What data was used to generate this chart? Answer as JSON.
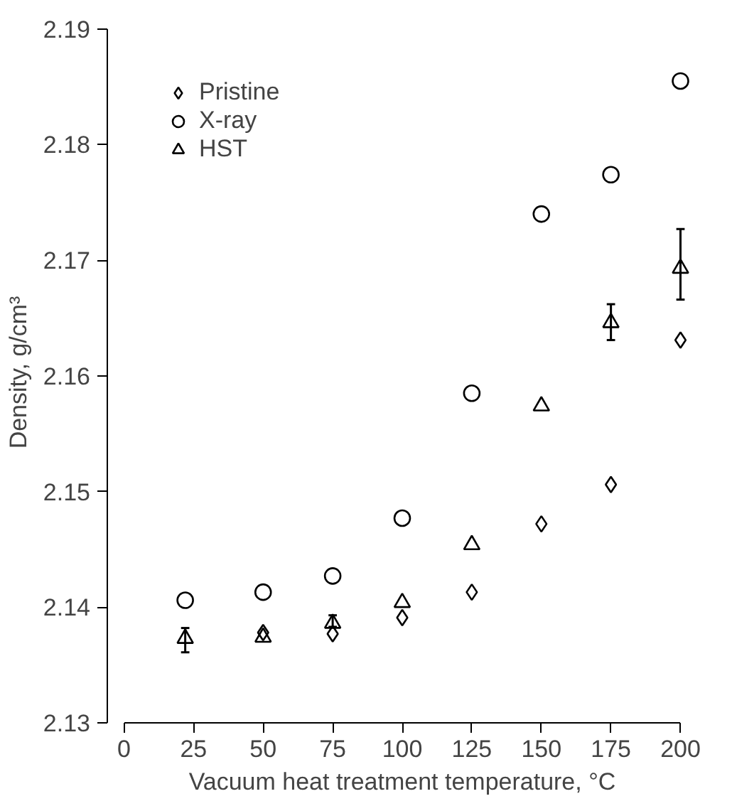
{
  "chart_data": {
    "type": "scatter",
    "xlabel": "Vacuum heat treatment temperature, °C",
    "ylabel": "Density, g/cm³",
    "xlim": [
      0,
      200
    ],
    "xticks": [
      0,
      25,
      50,
      75,
      100,
      125,
      150,
      175,
      200
    ],
    "ylim": [
      2.13,
      2.19
    ],
    "yticks": [
      2.13,
      2.14,
      2.15,
      2.16,
      2.17,
      2.18,
      2.19
    ],
    "grid": false,
    "legend": "top left",
    "x": [
      22,
      50,
      75,
      100,
      125,
      150,
      175,
      200
    ],
    "series": [
      {
        "name": "Pristine",
        "color": "#000000",
        "marker": "diamond",
        "values": [
          null,
          2.1378,
          2.1377,
          2.1391,
          2.1413,
          2.1472,
          2.1506,
          2.1631
        ]
      },
      {
        "name": "X-ray",
        "color": "#000000",
        "marker": "circle",
        "values": [
          2.1406,
          2.1413,
          2.1427,
          2.1477,
          2.1585,
          2.174,
          2.1774,
          2.1855
        ]
      },
      {
        "name": "HST",
        "color": "#000000",
        "marker": "triangle",
        "values": [
          2.1373,
          2.1374,
          2.1386,
          2.1404,
          2.1454,
          2.1574,
          2.1646,
          2.1693
        ],
        "errors": [
          [
            2.1361,
            2.1382
          ],
          null,
          [
            2.1383,
            2.1393
          ],
          null,
          null,
          null,
          [
            2.1631,
            2.1662
          ],
          [
            2.1666,
            2.1727
          ]
        ]
      }
    ]
  }
}
